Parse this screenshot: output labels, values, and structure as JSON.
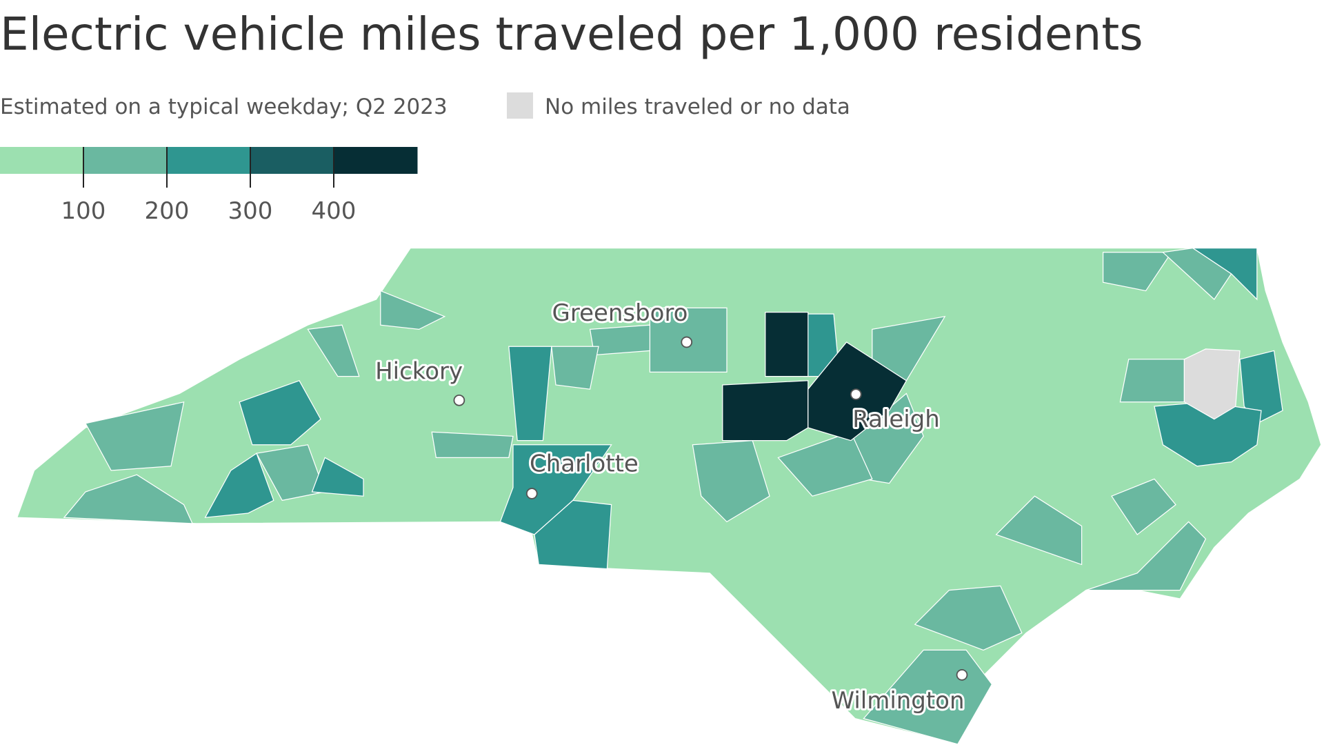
{
  "title": "Electric vehicle miles traveled per 1,000 residents",
  "subtitle": "Estimated on a typical weekday; Q2 2023",
  "no_data_label": "No miles traveled or no data",
  "no_data_color": "#dcdcdc",
  "legend": {
    "colors": [
      "#9ce0b0",
      "#6ab8a0",
      "#2f9690",
      "#1a5e62",
      "#062e35"
    ],
    "lim": [
      0,
      500
    ],
    "ticks": [
      100,
      200,
      300,
      400
    ]
  },
  "cities": [
    {
      "name": "Greensboro"
    },
    {
      "name": "Hickory"
    },
    {
      "name": "Charlotte"
    },
    {
      "name": "Raleigh"
    },
    {
      "name": "Wilmington"
    }
  ]
}
